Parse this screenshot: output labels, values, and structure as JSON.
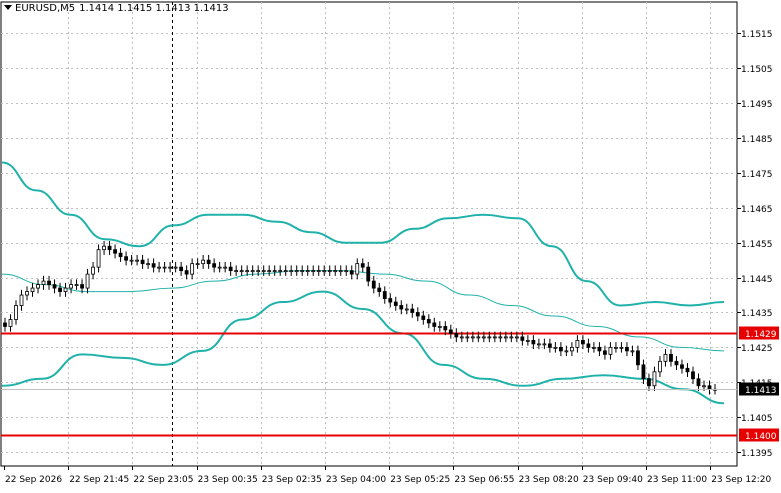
{
  "header": {
    "symbol": "EURUSD,M5",
    "ohlc": "1.1414 1.1415 1.1413 1.1413"
  },
  "colors": {
    "candle": "#000000",
    "bands": "#20b2aa",
    "middle_band": "#20b2aa",
    "level": "#e60000",
    "grid": "#c0c0c0",
    "price_tag_bg_current": "#000000",
    "price_tag_bg_level": "#e60000"
  },
  "chart_data": {
    "type": "candlestick",
    "title": "EURUSD,M5",
    "ylim": [
      1.1391,
      1.1524
    ],
    "y_ticks": [
      "1.1515",
      "1.1505",
      "1.1495",
      "1.1485",
      "1.1475",
      "1.1465",
      "1.1455",
      "1.1445",
      "1.1435",
      "1.1425",
      "1.1415",
      "1.1405",
      "1.1395"
    ],
    "x_labels": [
      "22 Sep 2026",
      "22 Sep 21:45",
      "22 Sep 23:05",
      "23 Sep 00:35",
      "23 Sep 02:35",
      "23 Sep 04:00",
      "23 Sep 05:25",
      "23 Sep 06:55",
      "23 Sep 08:20",
      "23 Sep 09:40",
      "23 Sep 11:00",
      "23 Sep 12:20"
    ],
    "grid": true,
    "horizontal_levels": [
      {
        "price": 1.1429,
        "label": "1.1429"
      },
      {
        "price": 1.14,
        "label": "1.1400"
      }
    ],
    "current_price": {
      "price": 1.1413,
      "label": "1.1413"
    },
    "crosshair_x_label": "22 Sep 23:05",
    "candles_close": [
      1.1431,
      1.1433,
      1.1437,
      1.144,
      1.1441,
      1.1442,
      1.1443,
      1.1444,
      1.1443,
      1.1442,
      1.1441,
      1.1442,
      1.1443,
      1.1443,
      1.1442,
      1.1446,
      1.1448,
      1.1453,
      1.1454,
      1.1453,
      1.1452,
      1.1451,
      1.145,
      1.145,
      1.145,
      1.1449,
      1.1449,
      1.1448,
      1.1448,
      1.1448,
      1.1448,
      1.1448,
      1.1447,
      1.1446,
      1.1449,
      1.1449,
      1.145,
      1.1449,
      1.1448,
      1.1448,
      1.1448,
      1.1447,
      1.1447,
      1.1447,
      1.1447,
      1.1447,
      1.1447,
      1.1447,
      1.1447,
      1.1447,
      1.1447,
      1.1447,
      1.1447,
      1.1447,
      1.1447,
      1.1447,
      1.1447,
      1.1447,
      1.1447,
      1.1447,
      1.1447,
      1.1447,
      1.1447,
      1.1446,
      1.1449,
      1.1448,
      1.1444,
      1.1442,
      1.1441,
      1.1439,
      1.1438,
      1.1437,
      1.1436,
      1.1436,
      1.1435,
      1.1434,
      1.1433,
      1.1432,
      1.1431,
      1.1431,
      1.143,
      1.1429,
      1.1428,
      1.1428,
      1.1428,
      1.1428,
      1.1428,
      1.1428,
      1.1428,
      1.1428,
      1.1428,
      1.1428,
      1.1428,
      1.1428,
      1.1427,
      1.1427,
      1.1426,
      1.1426,
      1.1426,
      1.1425,
      1.1425,
      1.1424,
      1.1424,
      1.1425,
      1.1427,
      1.1426,
      1.1425,
      1.1425,
      1.1424,
      1.1423,
      1.1425,
      1.1425,
      1.1425,
      1.1424,
      1.1424,
      1.142,
      1.1416,
      1.1414,
      1.1418,
      1.1421,
      1.1423,
      1.1421,
      1.142,
      1.1419,
      1.1418,
      1.1416,
      1.1414,
      1.1414,
      1.1413,
      1.1413
    ],
    "bollinger_upper_samples": [
      1.1478,
      1.147,
      1.1463,
      1.1456,
      1.1454,
      1.146,
      1.1463,
      1.1463,
      1.1461,
      1.1458,
      1.1455,
      1.1455,
      1.1459,
      1.1462,
      1.1463,
      1.1462,
      1.1454,
      1.1444,
      1.1437,
      1.1438,
      1.1437,
      1.1438
    ],
    "bollinger_middle_samples": [
      1.1446,
      1.1443,
      1.1441,
      1.1441,
      1.1442,
      1.1444,
      1.1446,
      1.1447,
      1.1447,
      1.1446,
      1.1444,
      1.144,
      1.1437,
      1.1434,
      1.1431,
      1.1428,
      1.1425,
      1.1424
    ],
    "bollinger_lower_samples": [
      1.1414,
      1.1416,
      1.1423,
      1.1422,
      1.142,
      1.1424,
      1.1433,
      1.1438,
      1.1441,
      1.1436,
      1.1429,
      1.142,
      1.1416,
      1.1414,
      1.1416,
      1.1417,
      1.1416,
      1.1413,
      1.1409
    ]
  }
}
